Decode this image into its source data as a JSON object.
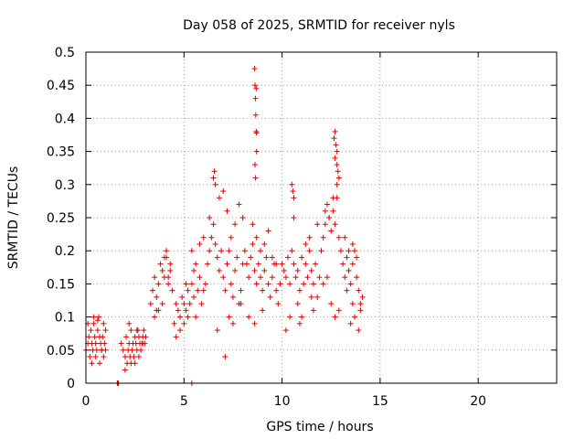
{
  "chart_data": {
    "type": "scatter",
    "title": "Day 058 of 2025, SRMTID for receiver nyls",
    "xlabel": "GPS time / hours",
    "ylabel": "SRMTID / TECUs",
    "xlim": [
      0,
      24
    ],
    "ylim": [
      0,
      0.5
    ],
    "xticks": [
      0,
      5,
      10,
      15,
      20
    ],
    "xtick_labels": [
      "0",
      "5",
      "10",
      "15",
      "20"
    ],
    "yticks": [
      0,
      0.05,
      0.1,
      0.15,
      0.2,
      0.25,
      0.3,
      0.35,
      0.4,
      0.45,
      0.5
    ],
    "ytick_labels": [
      "0",
      "0.05",
      "0.1",
      "0.15",
      "0.2",
      "0.25",
      "0.3",
      "0.35",
      "0.4",
      "0.45",
      "0.5"
    ],
    "grid": true,
    "marker": "plus",
    "color": "#e00000",
    "series": [
      {
        "name": "nyls",
        "x": [
          0.0,
          0.1,
          0.15,
          0.2,
          0.25,
          0.3,
          0.35,
          0.4,
          0.45,
          0.5,
          0.55,
          0.6,
          0.65,
          0.7,
          0.75,
          0.8,
          0.85,
          0.9,
          0.95,
          1.0,
          1.0,
          0.3,
          0.5,
          0.7,
          0.9,
          0.1,
          0.4,
          0.6,
          0.8,
          1.6,
          1.62,
          1.64,
          1.66,
          5.4,
          1.8,
          1.9,
          2.0,
          2.05,
          2.1,
          2.15,
          2.2,
          2.25,
          2.3,
          2.35,
          2.4,
          2.45,
          2.5,
          2.55,
          2.6,
          2.65,
          2.7,
          2.75,
          2.8,
          2.85,
          2.9,
          2.95,
          3.0,
          3.05,
          2.0,
          2.3,
          2.5,
          2.7,
          2.9,
          2.2,
          2.6,
          3.3,
          3.4,
          3.5,
          3.6,
          3.7,
          3.8,
          3.9,
          4.0,
          4.1,
          4.2,
          4.3,
          4.4,
          3.5,
          3.7,
          3.9,
          4.1,
          4.3,
          4.0,
          4.2,
          3.6,
          4.5,
          4.6,
          4.7,
          4.8,
          4.9,
          5.0,
          5.1,
          5.2,
          5.3,
          5.4,
          5.5,
          5.6,
          5.7,
          5.8,
          5.9,
          6.0,
          4.6,
          4.8,
          5.0,
          5.2,
          5.4,
          5.6,
          5.8,
          6.0,
          5.1,
          5.5,
          6.1,
          6.2,
          6.3,
          6.4,
          6.5,
          6.6,
          6.7,
          6.8,
          6.9,
          7.0,
          7.1,
          7.2,
          7.3,
          7.4,
          7.5,
          7.6,
          7.7,
          7.8,
          7.9,
          8.0,
          6.5,
          6.55,
          6.6,
          6.3,
          6.8,
          7.0,
          7.2,
          7.4,
          7.6,
          7.8,
          8.0,
          7.3,
          7.5,
          7.9,
          6.7,
          7.1,
          8.1,
          8.2,
          8.3,
          8.4,
          8.5,
          8.6,
          8.7,
          8.8,
          8.9,
          9.0,
          9.1,
          9.2,
          9.3,
          9.4,
          9.5,
          9.6,
          9.7,
          9.8,
          9.9,
          8.5,
          8.7,
          8.9,
          9.1,
          9.3,
          9.5,
          9.7,
          8.3,
          8.6,
          9.0,
          8.6,
          8.62,
          8.64,
          8.66,
          8.68,
          8.7,
          8.62,
          8.65,
          8.68,
          8.7,
          10.0,
          10.1,
          10.2,
          10.3,
          10.4,
          10.5,
          10.6,
          10.7,
          10.8,
          10.9,
          11.0,
          11.1,
          11.2,
          11.3,
          11.4,
          11.5,
          11.6,
          11.7,
          11.8,
          11.9,
          10.5,
          10.55,
          10.6,
          10.6,
          10.2,
          10.8,
          11.0,
          11.2,
          11.4,
          11.6,
          11.8,
          10.4,
          10.9,
          11.5,
          12.0,
          12.1,
          12.2,
          12.3,
          12.4,
          12.5,
          12.6,
          12.7,
          12.8,
          12.9,
          13.0,
          12.1,
          12.3,
          12.5,
          12.7,
          12.9,
          12.2,
          12.4,
          12.6,
          12.8,
          12.7,
          12.75,
          12.8,
          12.85,
          12.9,
          12.65,
          12.7,
          12.8,
          13.1,
          13.2,
          13.3,
          13.4,
          13.5,
          13.6,
          13.7,
          13.8,
          13.9,
          14.0,
          14.1,
          13.2,
          13.4,
          13.6,
          13.8,
          14.0,
          13.5,
          13.7,
          13.9,
          13.3,
          13.6
        ],
        "y": [
          0.05,
          0.06,
          0.07,
          0.04,
          0.08,
          0.06,
          0.05,
          0.09,
          0.07,
          0.06,
          0.05,
          0.08,
          0.1,
          0.07,
          0.06,
          0.05,
          0.07,
          0.09,
          0.06,
          0.05,
          0.08,
          0.03,
          0.04,
          0.03,
          0.04,
          0.09,
          0.1,
          0.095,
          0.05,
          0.0,
          0.0,
          0.0,
          0.0,
          0.0,
          0.06,
          0.05,
          0.04,
          0.07,
          0.03,
          0.05,
          0.06,
          0.04,
          0.08,
          0.05,
          0.06,
          0.04,
          0.07,
          0.06,
          0.05,
          0.08,
          0.07,
          0.06,
          0.05,
          0.06,
          0.07,
          0.08,
          0.06,
          0.07,
          0.02,
          0.03,
          0.03,
          0.04,
          0.06,
          0.09,
          0.08,
          0.12,
          0.14,
          0.16,
          0.13,
          0.15,
          0.18,
          0.17,
          0.16,
          0.19,
          0.15,
          0.17,
          0.14,
          0.1,
          0.11,
          0.12,
          0.2,
          0.18,
          0.19,
          0.16,
          0.11,
          0.09,
          0.12,
          0.11,
          0.1,
          0.13,
          0.12,
          0.11,
          0.14,
          0.12,
          0.15,
          0.13,
          0.1,
          0.14,
          0.16,
          0.12,
          0.14,
          0.07,
          0.08,
          0.09,
          0.1,
          0.2,
          0.18,
          0.21,
          0.22,
          0.15,
          0.17,
          0.15,
          0.18,
          0.2,
          0.22,
          0.24,
          0.21,
          0.19,
          0.17,
          0.2,
          0.16,
          0.14,
          0.18,
          0.2,
          0.15,
          0.13,
          0.17,
          0.19,
          0.12,
          0.14,
          0.18,
          0.31,
          0.32,
          0.3,
          0.25,
          0.28,
          0.29,
          0.26,
          0.22,
          0.24,
          0.27,
          0.25,
          0.1,
          0.09,
          0.12,
          0.08,
          0.04,
          0.2,
          0.18,
          0.16,
          0.19,
          0.21,
          0.17,
          0.15,
          0.18,
          0.16,
          0.14,
          0.17,
          0.19,
          0.15,
          0.13,
          0.16,
          0.18,
          0.14,
          0.12,
          0.15,
          0.24,
          0.22,
          0.2,
          0.21,
          0.23,
          0.19,
          0.18,
          0.1,
          0.09,
          0.11,
          0.475,
          0.45,
          0.43,
          0.405,
          0.38,
          0.35,
          0.33,
          0.31,
          0.445,
          0.378,
          0.18,
          0.17,
          0.16,
          0.19,
          0.15,
          0.2,
          0.18,
          0.16,
          0.17,
          0.14,
          0.19,
          0.15,
          0.18,
          0.16,
          0.2,
          0.17,
          0.15,
          0.18,
          0.13,
          0.16,
          0.3,
          0.29,
          0.28,
          0.25,
          0.08,
          0.12,
          0.1,
          0.21,
          0.22,
          0.11,
          0.24,
          0.1,
          0.09,
          0.13,
          0.2,
          0.22,
          0.24,
          0.27,
          0.25,
          0.23,
          0.26,
          0.24,
          0.28,
          0.22,
          0.2,
          0.15,
          0.16,
          0.12,
          0.1,
          0.11,
          0.26,
          0.25,
          0.28,
          0.3,
          0.38,
          0.36,
          0.35,
          0.32,
          0.31,
          0.37,
          0.34,
          0.33,
          0.18,
          0.16,
          0.19,
          0.17,
          0.15,
          0.18,
          0.2,
          0.16,
          0.14,
          0.12,
          0.13,
          0.22,
          0.2,
          0.21,
          0.19,
          0.11,
          0.09,
          0.1,
          0.08,
          0.14,
          0.12
        ]
      }
    ]
  }
}
